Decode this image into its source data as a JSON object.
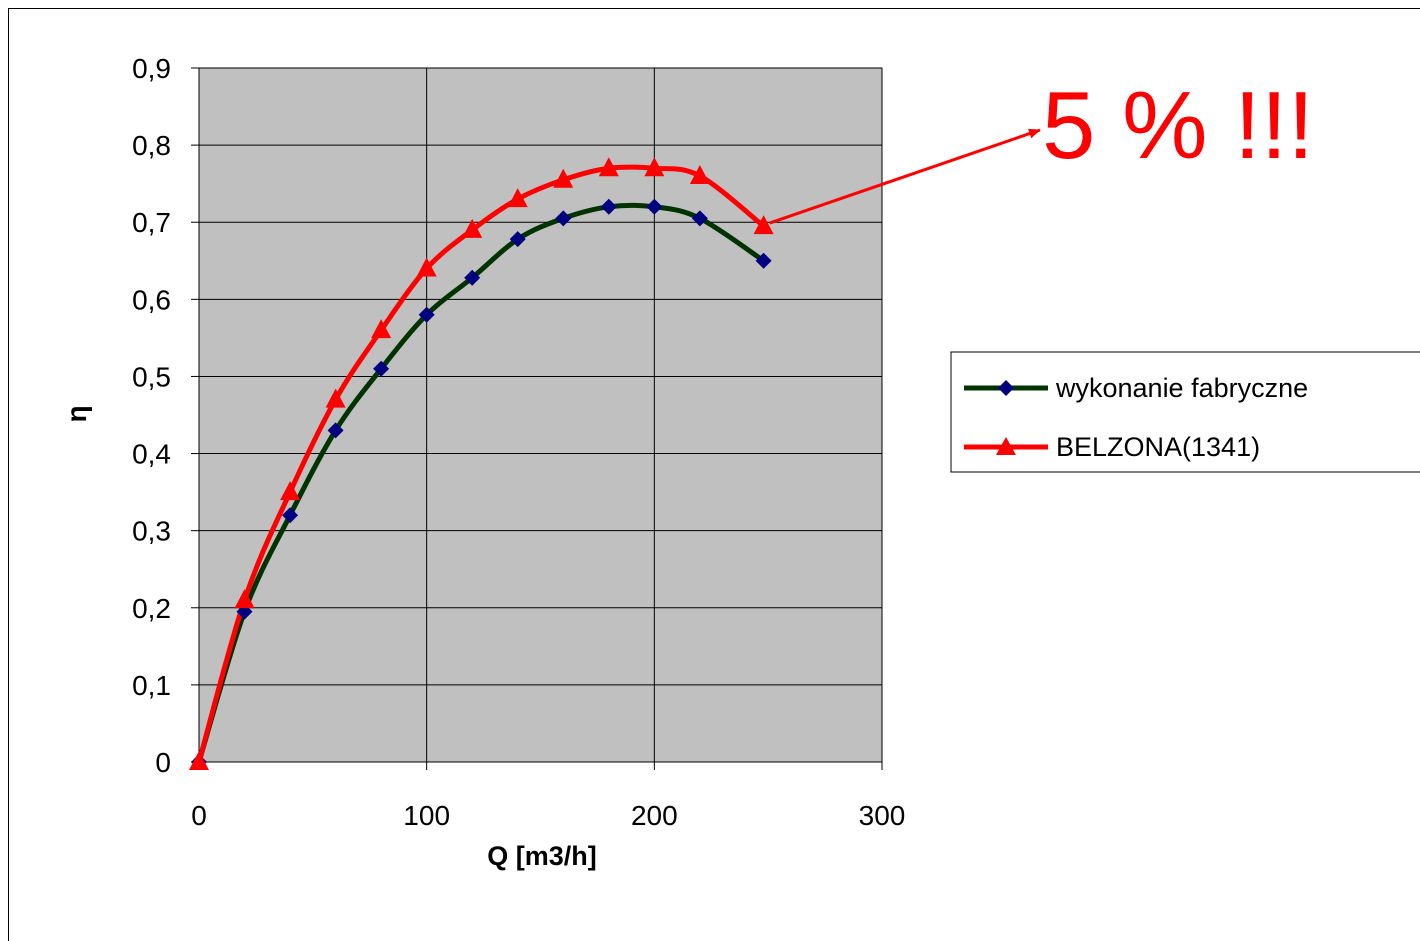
{
  "chart_data": {
    "type": "line",
    "title": "",
    "xlabel": "Q [m3/h]",
    "ylabel": "η",
    "xlim": [
      0,
      300
    ],
    "ylim": [
      0,
      0.9
    ],
    "x_ticks": [
      0,
      100,
      200,
      300
    ],
    "x_tick_labels": [
      "0",
      "100",
      "200",
      "300"
    ],
    "y_ticks": [
      0,
      0.1,
      0.2,
      0.3,
      0.4,
      0.5,
      0.6,
      0.7,
      0.8,
      0.9
    ],
    "y_tick_labels": [
      "0",
      "0,1",
      "0,2",
      "0,3",
      "0,4",
      "0,5",
      "0,6",
      "0,7",
      "0,8",
      "0,9"
    ],
    "grid": true,
    "plot_background": "#c0c0c0",
    "legend_position": "right",
    "series": [
      {
        "name": "wykonanie fabryczne",
        "color": "#003300",
        "marker_color": "#000080",
        "marker": "diamond",
        "x": [
          0,
          20,
          40,
          60,
          80,
          100,
          120,
          140,
          160,
          180,
          200,
          220,
          248
        ],
        "y": [
          0,
          0.195,
          0.32,
          0.43,
          0.51,
          0.58,
          0.628,
          0.678,
          0.705,
          0.72,
          0.72,
          0.705,
          0.65
        ]
      },
      {
        "name": "BELZONA(1341)",
        "color": "#ff0000",
        "marker_color": "#ff0000",
        "marker": "triangle",
        "x": [
          0,
          20,
          40,
          60,
          80,
          100,
          120,
          140,
          160,
          180,
          200,
          220,
          248
        ],
        "y": [
          0,
          0.21,
          0.35,
          0.47,
          0.56,
          0.64,
          0.69,
          0.73,
          0.755,
          0.77,
          0.77,
          0.76,
          0.695
        ]
      }
    ],
    "annotation": {
      "text": "5 % !!!",
      "color": "#ff0000",
      "points_to": {
        "x": 248,
        "y": 0.695
      }
    }
  }
}
